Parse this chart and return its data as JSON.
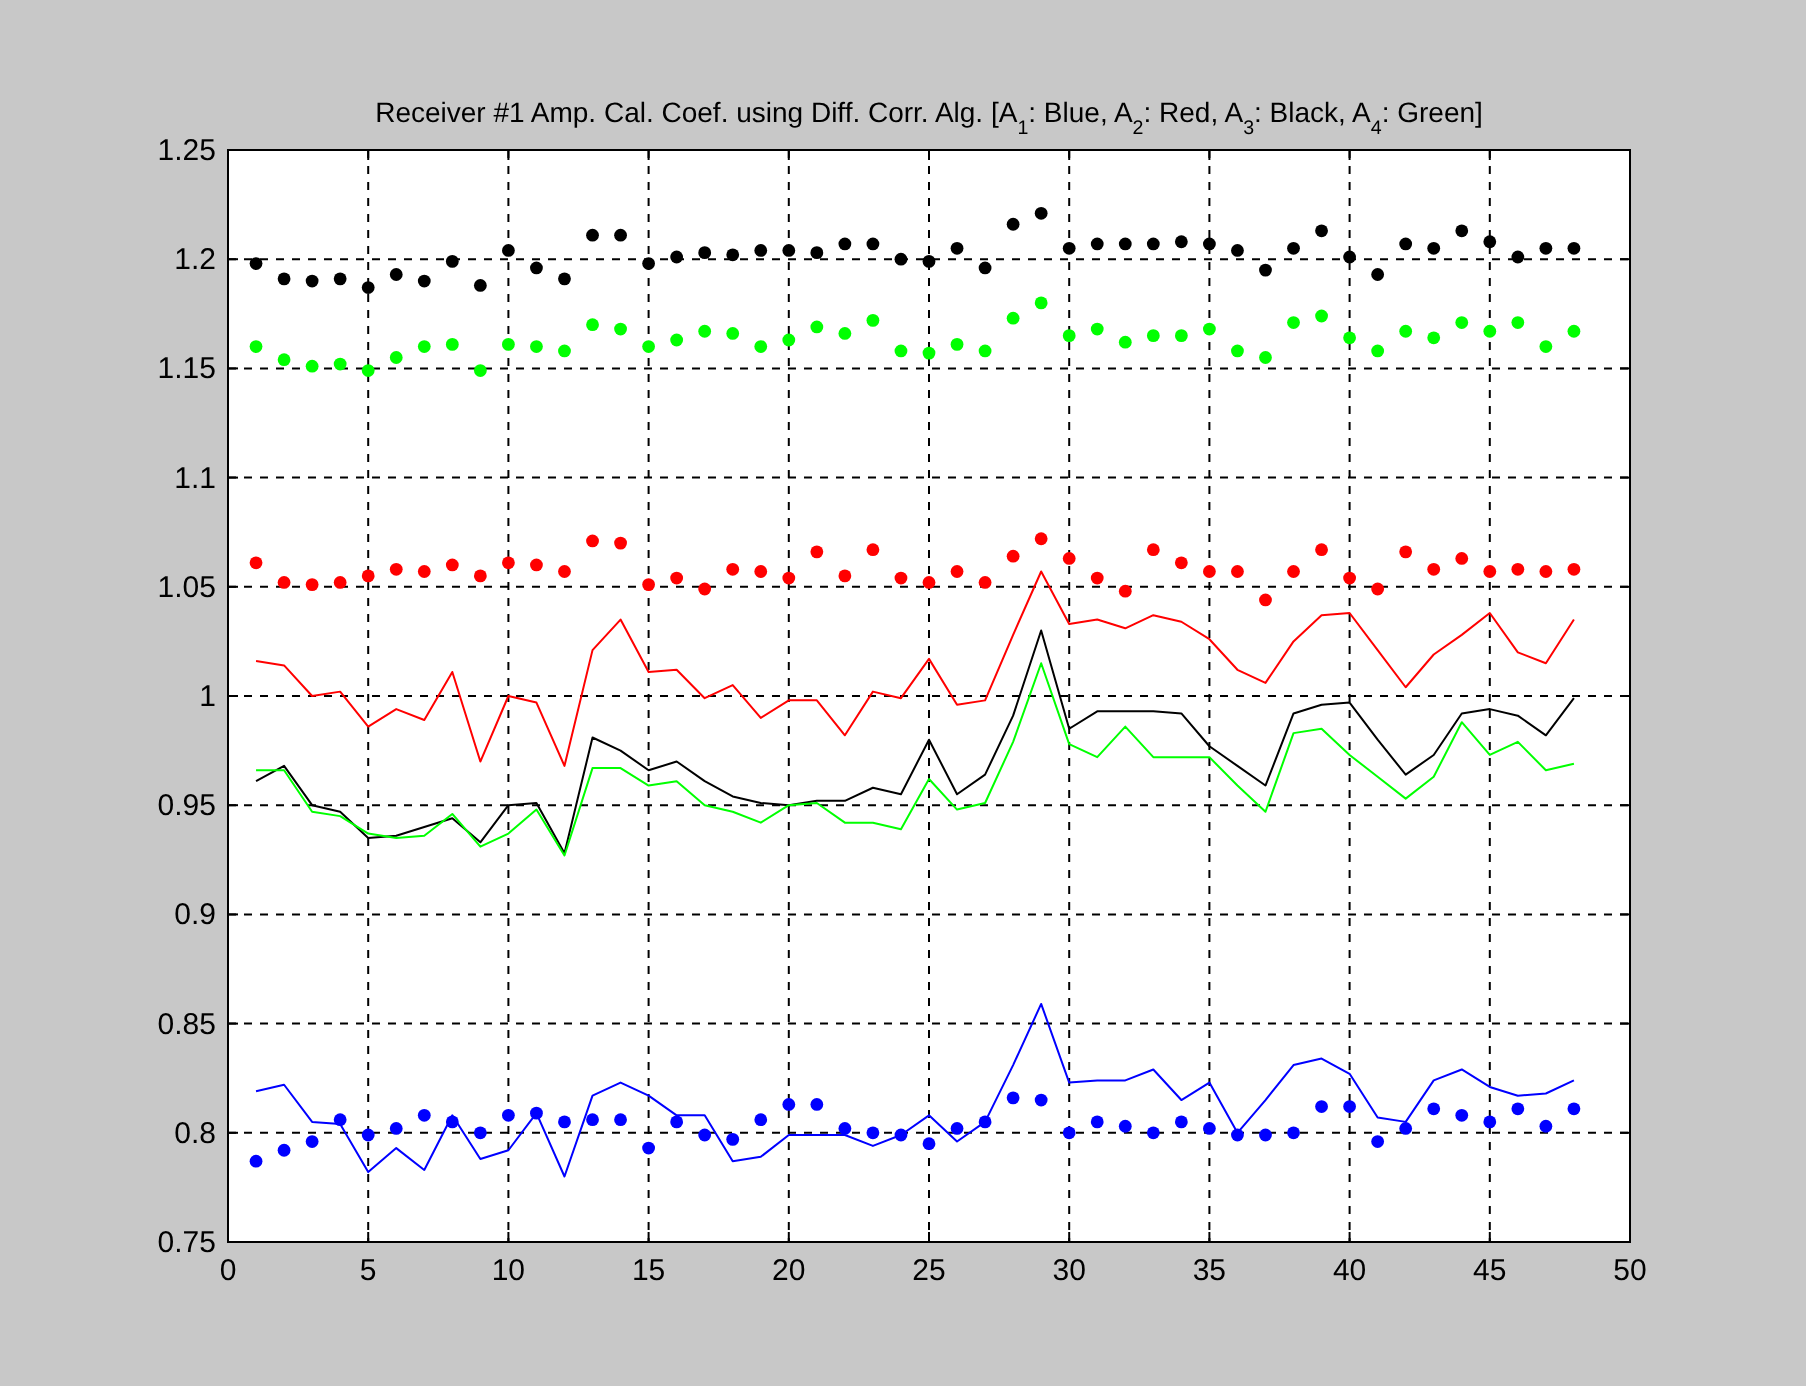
{
  "chart_data": {
    "type": "scatter",
    "title": "Receiver #1 Amp. Cal. Coef. using Diff. Corr. Alg. [A$_{1}$: Blue, A$_{2}$: Red, A$_{3}$: Black, A$_{4}$: Green]",
    "x": [
      1,
      2,
      3,
      4,
      5,
      6,
      7,
      8,
      9,
      10,
      11,
      12,
      13,
      14,
      15,
      16,
      17,
      18,
      19,
      20,
      21,
      22,
      23,
      24,
      25,
      26,
      27,
      28,
      29,
      30,
      31,
      32,
      33,
      34,
      35,
      36,
      37,
      38,
      39,
      40,
      41,
      42,
      43,
      44,
      45,
      46,
      47,
      48
    ],
    "xlim": [
      0,
      50
    ],
    "xticks": [
      0,
      5,
      10,
      15,
      20,
      25,
      30,
      35,
      40,
      45,
      50
    ],
    "ylim": [
      0.75,
      1.25
    ],
    "yticks": [
      0.75,
      0.8,
      0.85,
      0.9,
      0.95,
      1,
      1.05,
      1.1,
      1.15,
      1.2,
      1.25
    ],
    "grid": true,
    "series": [
      {
        "type": "line",
        "marker": "none",
        "color": "#0000ff",
        "values": [
          0.819,
          0.822,
          0.805,
          0.804,
          0.782,
          0.793,
          0.783,
          0.808,
          0.788,
          0.792,
          0.809,
          0.78,
          0.817,
          0.823,
          0.817,
          0.808,
          0.808,
          0.787,
          0.789,
          0.799,
          0.799,
          0.799,
          0.794,
          0.799,
          0.808,
          0.796,
          0.805,
          0.831,
          0.859,
          0.823,
          0.824,
          0.824,
          0.829,
          0.815,
          0.823,
          0.8,
          0.815,
          0.831,
          0.834,
          0.827,
          0.807,
          0.805,
          0.824,
          0.829,
          0.821,
          0.817,
          0.818,
          0.824
        ]
      },
      {
        "type": "line",
        "marker": "none",
        "color": "#ff0000",
        "values": [
          1.016,
          1.014,
          1.0,
          1.002,
          0.986,
          0.994,
          0.989,
          1.011,
          0.97,
          1.0,
          0.997,
          0.968,
          1.021,
          1.035,
          1.011,
          1.012,
          0.999,
          1.005,
          0.99,
          0.998,
          0.998,
          0.982,
          1.002,
          0.999,
          1.017,
          0.996,
          0.998,
          1.028,
          1.057,
          1.033,
          1.035,
          1.031,
          1.037,
          1.034,
          1.026,
          1.012,
          1.006,
          1.025,
          1.037,
          1.038,
          1.021,
          1.004,
          1.019,
          1.028,
          1.038,
          1.02,
          1.015,
          1.035
        ]
      },
      {
        "type": "line",
        "marker": "none",
        "color": "#000000",
        "values": [
          0.961,
          0.968,
          0.95,
          0.947,
          0.935,
          0.936,
          0.94,
          0.944,
          0.933,
          0.95,
          0.951,
          0.928,
          0.981,
          0.975,
          0.966,
          0.97,
          0.961,
          0.954,
          0.951,
          0.95,
          0.952,
          0.952,
          0.958,
          0.955,
          0.98,
          0.955,
          0.964,
          0.991,
          1.03,
          0.985,
          0.993,
          0.993,
          0.993,
          0.992,
          0.977,
          0.968,
          0.959,
          0.992,
          0.996,
          0.997,
          0.98,
          0.964,
          0.973,
          0.992,
          0.994,
          0.991,
          0.982,
          0.999
        ]
      },
      {
        "type": "line",
        "marker": "none",
        "color": "#00ff00",
        "values": [
          0.966,
          0.966,
          0.947,
          0.945,
          0.937,
          0.935,
          0.936,
          0.946,
          0.931,
          0.937,
          0.948,
          0.927,
          0.967,
          0.967,
          0.959,
          0.961,
          0.95,
          0.947,
          0.942,
          0.95,
          0.951,
          0.942,
          0.942,
          0.939,
          0.962,
          0.948,
          0.951,
          0.979,
          1.015,
          0.978,
          0.972,
          0.986,
          0.972,
          0.972,
          0.972,
          0.959,
          0.947,
          0.983,
          0.985,
          0.973,
          0.963,
          0.953,
          0.963,
          0.988,
          0.973,
          0.979,
          0.966,
          0.969
        ]
      },
      {
        "marker": "circle",
        "color": "#0000ff",
        "values": [
          0.787,
          0.792,
          0.796,
          0.806,
          0.799,
          0.802,
          0.808,
          0.805,
          0.8,
          0.808,
          0.809,
          0.805,
          0.806,
          0.806,
          0.793,
          0.805,
          0.799,
          0.797,
          0.806,
          0.813,
          0.813,
          0.802,
          0.8,
          0.799,
          0.795,
          0.802,
          0.805,
          0.816,
          0.815,
          0.8,
          0.805,
          0.803,
          0.8,
          0.805,
          0.802,
          0.799,
          0.799,
          0.8,
          0.812,
          0.812,
          0.796,
          0.802,
          0.811,
          0.808,
          0.805,
          0.811,
          0.803,
          0.811
        ]
      },
      {
        "marker": "circle",
        "color": "#ff0000",
        "values": [
          1.061,
          1.052,
          1.051,
          1.052,
          1.055,
          1.058,
          1.057,
          1.06,
          1.055,
          1.061,
          1.06,
          1.057,
          1.071,
          1.07,
          1.051,
          1.054,
          1.049,
          1.058,
          1.057,
          1.054,
          1.066,
          1.055,
          1.067,
          1.054,
          1.052,
          1.057,
          1.052,
          1.064,
          1.072,
          1.063,
          1.054,
          1.048,
          1.067,
          1.061,
          1.057,
          1.057,
          1.044,
          1.057,
          1.067,
          1.054,
          1.049,
          1.066,
          1.058,
          1.063,
          1.057,
          1.058,
          1.057,
          1.058
        ]
      },
      {
        "marker": "circle",
        "color": "#000000",
        "values": [
          1.198,
          1.191,
          1.19,
          1.191,
          1.187,
          1.193,
          1.19,
          1.199,
          1.188,
          1.204,
          1.196,
          1.191,
          1.211,
          1.211,
          1.198,
          1.201,
          1.203,
          1.202,
          1.204,
          1.204,
          1.203,
          1.207,
          1.207,
          1.2,
          1.199,
          1.205,
          1.196,
          1.216,
          1.221,
          1.205,
          1.207,
          1.207,
          1.207,
          1.208,
          1.207,
          1.204,
          1.195,
          1.205,
          1.213,
          1.201,
          1.193,
          1.207,
          1.205,
          1.213,
          1.208,
          1.201,
          1.205,
          1.205
        ]
      },
      {
        "marker": "circle",
        "color": "#00ff00",
        "values": [
          1.16,
          1.154,
          1.151,
          1.152,
          1.149,
          1.155,
          1.16,
          1.161,
          1.149,
          1.161,
          1.16,
          1.158,
          1.17,
          1.168,
          1.16,
          1.163,
          1.167,
          1.166,
          1.16,
          1.163,
          1.169,
          1.166,
          1.172,
          1.158,
          1.157,
          1.161,
          1.158,
          1.173,
          1.18,
          1.165,
          1.168,
          1.162,
          1.165,
          1.165,
          1.168,
          1.158,
          1.155,
          1.171,
          1.174,
          1.164,
          1.158,
          1.167,
          1.164,
          1.171,
          1.167,
          1.171,
          1.16,
          1.167
        ]
      }
    ]
  }
}
